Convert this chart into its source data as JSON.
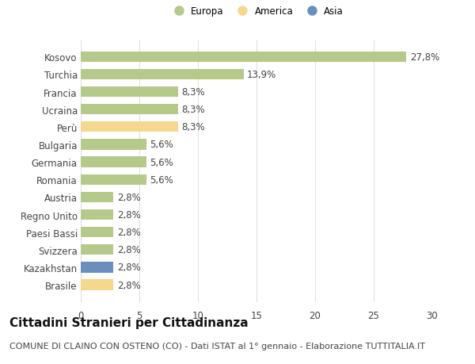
{
  "categories": [
    "Brasile",
    "Kazakhstan",
    "Svizzera",
    "Paesi Bassi",
    "Regno Unito",
    "Austria",
    "Romania",
    "Germania",
    "Bulgaria",
    "Perù",
    "Ucraina",
    "Francia",
    "Turchia",
    "Kosovo"
  ],
  "values": [
    2.8,
    2.8,
    2.8,
    2.8,
    2.8,
    2.8,
    5.6,
    5.6,
    5.6,
    8.3,
    8.3,
    8.3,
    13.9,
    27.8
  ],
  "labels": [
    "2,8%",
    "2,8%",
    "2,8%",
    "2,8%",
    "2,8%",
    "2,8%",
    "5,6%",
    "5,6%",
    "5,6%",
    "8,3%",
    "8,3%",
    "8,3%",
    "13,9%",
    "27,8%"
  ],
  "colors": [
    "#f5d78e",
    "#6a8fbf",
    "#b5c98a",
    "#b5c98a",
    "#b5c98a",
    "#b5c98a",
    "#b5c98a",
    "#b5c98a",
    "#b5c98a",
    "#f5d78e",
    "#b5c98a",
    "#b5c98a",
    "#b5c98a",
    "#b5c98a"
  ],
  "legend_labels": [
    "Europa",
    "America",
    "Asia"
  ],
  "legend_colors": [
    "#b5c98a",
    "#f5d78e",
    "#6a8fbf"
  ],
  "title": "Cittadini Stranieri per Cittadinanza",
  "subtitle": "COMUNE DI CLAINO CON OSTENO (CO) - Dati ISTAT al 1° gennaio - Elaborazione TUTTITALIA.IT",
  "xlim": [
    0,
    30
  ],
  "xticks": [
    0,
    5,
    10,
    15,
    20,
    25,
    30
  ],
  "bg_color": "#ffffff",
  "grid_color": "#e0e0e0",
  "bar_height": 0.6,
  "label_fontsize": 8.5,
  "title_fontsize": 11,
  "subtitle_fontsize": 8,
  "tick_fontsize": 8.5
}
